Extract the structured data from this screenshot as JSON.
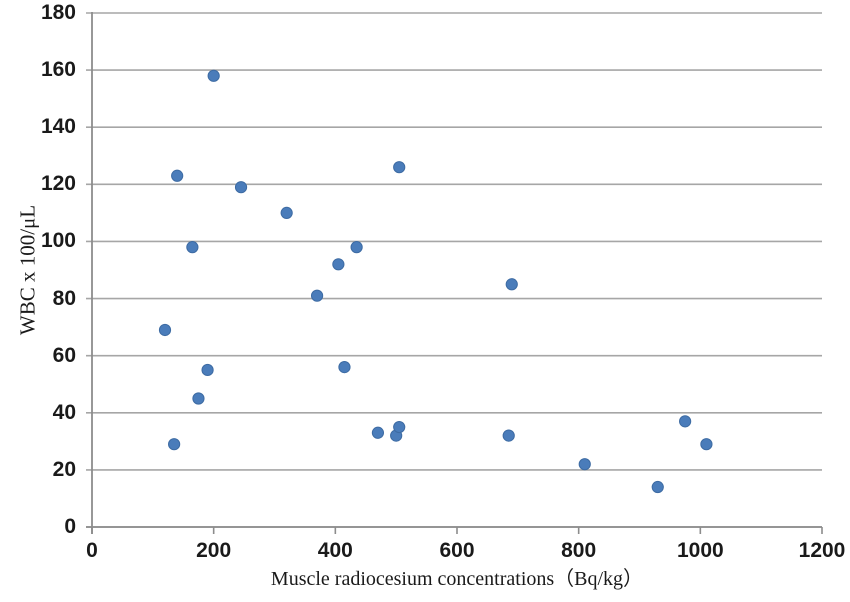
{
  "figure": {
    "background": "#ffffff",
    "gridline_color": "#a6a6a6",
    "axis_color": "#8c8c8c",
    "tick_label_color": "#1a1a1a"
  },
  "chart_data": {
    "type": "scatter",
    "title": "",
    "xlabel": "Muscle radiocesium concentrations（Bq/kg）",
    "ylabel": "WBC x 100/μL",
    "xlim": [
      0,
      1200
    ],
    "ylim": [
      0,
      180
    ],
    "xticks": [
      0,
      200,
      400,
      600,
      800,
      1000,
      1200
    ],
    "yticks": [
      0,
      20,
      40,
      60,
      80,
      100,
      120,
      140,
      160,
      180
    ],
    "grid": "horizontal",
    "legend": "none",
    "marker": {
      "shape": "circle",
      "fill_color": "#4a7cba",
      "edge_color": "#3d6ba3",
      "radius_px": 5.6
    },
    "points": [
      [
        120,
        69
      ],
      [
        135,
        29
      ],
      [
        140,
        123
      ],
      [
        165,
        98
      ],
      [
        175,
        45
      ],
      [
        190,
        55
      ],
      [
        200,
        158
      ],
      [
        245,
        119
      ],
      [
        320,
        110
      ],
      [
        370,
        81
      ],
      [
        405,
        92
      ],
      [
        415,
        56
      ],
      [
        435,
        98
      ],
      [
        470,
        33
      ],
      [
        500,
        32
      ],
      [
        505,
        35
      ],
      [
        505,
        126
      ],
      [
        685,
        32
      ],
      [
        690,
        85
      ],
      [
        810,
        22
      ],
      [
        930,
        14
      ],
      [
        975,
        37
      ],
      [
        1010,
        29
      ]
    ]
  }
}
